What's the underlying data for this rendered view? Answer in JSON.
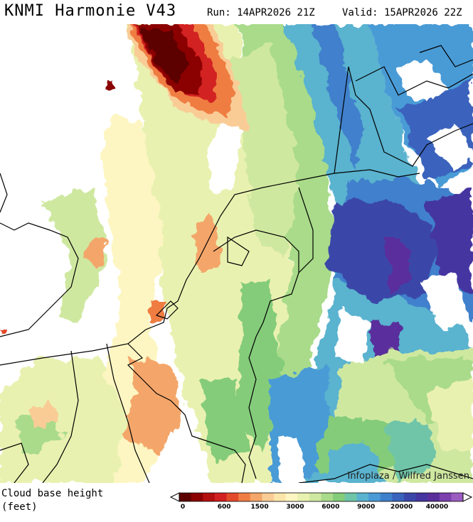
{
  "header": {
    "title": "KNMI Harmonie V43",
    "run": "Run: 14APR2026 21Z",
    "valid": "Valid: 15APR2026 22Z"
  },
  "map": {
    "credit": "Infoplaza / Wilfred Janssen",
    "field": "cloud base height"
  },
  "legend": {
    "title_line1": "Cloud base height",
    "title_line2": "(feet)",
    "colors": [
      "#5c0000",
      "#8b0000",
      "#b40f0f",
      "#d22020",
      "#e34a2a",
      "#ef7d43",
      "#f4a66a",
      "#f9cc96",
      "#fbe5a8",
      "#fdf6c2",
      "#e9f1b0",
      "#cfe8a0",
      "#a9db8a",
      "#84cc7a",
      "#6fc5a8",
      "#5ab3cf",
      "#4a9bd6",
      "#3f80cc",
      "#3a63bd",
      "#3b47a8",
      "#4535a0",
      "#5a2f9c",
      "#7b3fae",
      "#9b5cc0"
    ],
    "ticks": [
      "0",
      "600",
      "1500",
      "3000",
      "6000",
      "9000",
      "20000",
      "40000"
    ]
  }
}
